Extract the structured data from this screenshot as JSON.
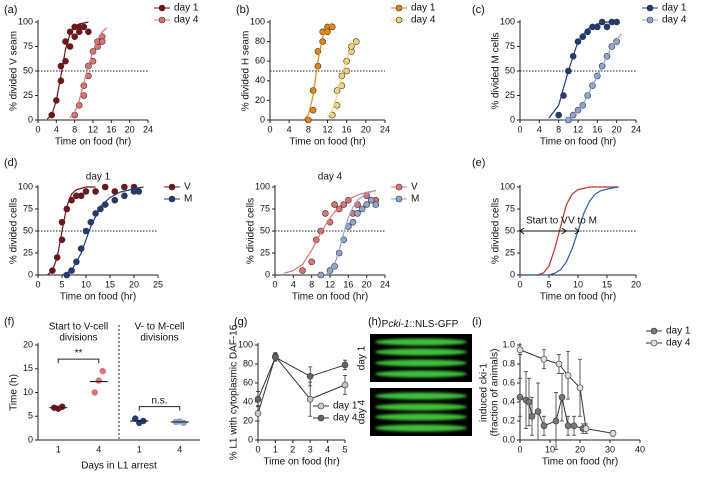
{
  "chart_data": [
    {
      "panel": "(a)",
      "type": "scatter",
      "xlabel": "Time on food (hr)",
      "ylabel": "% divided V seam",
      "xlim": [
        0,
        24
      ],
      "xticks": [
        0,
        4,
        8,
        12,
        16,
        20,
        24
      ],
      "ylim": [
        0,
        100
      ],
      "yticks": [
        0,
        25,
        50,
        75,
        100
      ],
      "hline": 50,
      "legend": "outside upper right",
      "series": [
        {
          "name": "day 1",
          "color": "#7a0f14",
          "mode": "markers",
          "x": [
            3,
            4,
            5,
            5,
            6,
            6,
            7,
            7,
            8,
            8,
            9,
            9,
            10,
            11
          ],
          "values": [
            5,
            20,
            40,
            55,
            60,
            80,
            75,
            90,
            85,
            95,
            90,
            95,
            95,
            90
          ]
        },
        {
          "color": "#7a0f14",
          "mode": "lines",
          "x": [
            2,
            3,
            4,
            5,
            6,
            7,
            8,
            9,
            10,
            11
          ],
          "values": [
            1,
            5,
            20,
            45,
            72,
            88,
            95,
            98,
            99,
            100
          ]
        },
        {
          "name": "day 4",
          "color": "#e07274",
          "mode": "markers",
          "x": [
            8,
            9,
            10,
            10,
            11,
            11,
            12,
            12,
            13,
            13,
            14,
            14
          ],
          "values": [
            5,
            15,
            25,
            35,
            45,
            55,
            60,
            70,
            75,
            80,
            85,
            80
          ]
        },
        {
          "color": "#e07274",
          "mode": "lines",
          "x": [
            7,
            8,
            9,
            10,
            11,
            12,
            13,
            14,
            15
          ],
          "values": [
            2,
            8,
            20,
            38,
            55,
            70,
            82,
            90,
            94
          ]
        }
      ]
    },
    {
      "panel": "(b)",
      "type": "scatter",
      "xlabel": "Time on food (hr)",
      "ylabel": "% divided H seam",
      "xlim": [
        0,
        24
      ],
      "xticks": [
        0,
        4,
        8,
        12,
        16,
        20,
        24
      ],
      "ylim": [
        0,
        100
      ],
      "yticks": [
        0,
        20,
        40,
        60,
        80,
        100
      ],
      "hline": 50,
      "legend": "outside upper right",
      "series": [
        {
          "name": "day 1",
          "color": "#e8870f",
          "mode": "markers",
          "x": [
            8,
            9,
            9,
            10,
            10,
            11,
            11,
            12,
            12,
            13
          ],
          "values": [
            0,
            10,
            30,
            55,
            70,
            80,
            90,
            95,
            90,
            95
          ]
        },
        {
          "color": "#e8870f",
          "mode": "lines",
          "x": [
            7,
            8,
            9,
            10,
            11,
            12,
            13
          ],
          "values": [
            0,
            5,
            25,
            60,
            85,
            95,
            99
          ]
        },
        {
          "name": "day 4",
          "color": "#f2d372",
          "mode": "markers",
          "x": [
            13,
            14,
            14,
            15,
            15,
            16,
            16,
            17,
            17,
            18
          ],
          "values": [
            5,
            15,
            30,
            35,
            45,
            50,
            60,
            70,
            75,
            80
          ]
        },
        {
          "color": "#f2d372",
          "mode": "lines",
          "x": [
            12,
            13,
            14,
            15,
            16,
            17,
            18
          ],
          "values": [
            2,
            10,
            25,
            45,
            62,
            75,
            82
          ]
        }
      ]
    },
    {
      "panel": "(c)",
      "type": "scatter",
      "xlabel": "Time on food (hr)",
      "ylabel": "% divided M cells",
      "xlim": [
        0,
        24
      ],
      "xticks": [
        0,
        4,
        8,
        12,
        16,
        20,
        24
      ],
      "ylim": [
        0,
        100
      ],
      "yticks": [
        0,
        25,
        50,
        75,
        100
      ],
      "hline": 50,
      "legend": "outside upper right",
      "series": [
        {
          "name": "day 1",
          "color": "#1f3c78",
          "mode": "markers",
          "x": [
            8,
            9,
            10,
            11,
            12,
            13,
            14,
            15,
            16,
            17,
            18,
            19,
            20
          ],
          "values": [
            5,
            25,
            50,
            65,
            80,
            85,
            90,
            95,
            95,
            100,
            95,
            100,
            100
          ]
        },
        {
          "color": "#1f3c78",
          "mode": "lines",
          "x": [
            6,
            8,
            10,
            12,
            14,
            16,
            18,
            20
          ],
          "values": [
            2,
            15,
            50,
            80,
            93,
            98,
            100,
            100
          ]
        },
        {
          "name": "day 4",
          "color": "#8ea7d2",
          "mode": "markers",
          "x": [
            10,
            11,
            12,
            13,
            14,
            15,
            16,
            17,
            18,
            19,
            20
          ],
          "values": [
            0,
            5,
            10,
            15,
            25,
            35,
            45,
            55,
            65,
            75,
            80
          ]
        },
        {
          "color": "#8ea7d2",
          "mode": "lines",
          "x": [
            9,
            11,
            13,
            15,
            17,
            19,
            21
          ],
          "values": [
            0,
            5,
            15,
            35,
            55,
            75,
            88
          ]
        }
      ]
    },
    {
      "panel": "(d)",
      "type": "scatter",
      "title": "day 1",
      "xlabel": "Time on food (hr)",
      "ylabel": "% divided cells",
      "xlim": [
        0,
        25
      ],
      "xticks": [
        0,
        5,
        10,
        15,
        20,
        25
      ],
      "ylim": [
        0,
        100
      ],
      "yticks": [
        0,
        25,
        50,
        75,
        100
      ],
      "hline": 50,
      "legend": "outside upper right",
      "series": [
        {
          "name": "V",
          "color": "#7a0f14",
          "mode": "markers",
          "x": [
            3,
            4,
            5,
            5,
            6,
            7,
            8,
            9,
            10,
            12,
            14,
            16,
            18,
            20
          ],
          "values": [
            5,
            20,
            40,
            60,
            75,
            85,
            90,
            90,
            95,
            95,
            100,
            95,
            100,
            100
          ]
        },
        {
          "color": "#7a0f14",
          "mode": "lines",
          "x": [
            2,
            3,
            4,
            5,
            6,
            7,
            8,
            10,
            12
          ],
          "values": [
            0,
            5,
            20,
            50,
            78,
            92,
            97,
            100,
            100
          ]
        },
        {
          "name": "M",
          "color": "#1f3c78",
          "mode": "markers",
          "x": [
            6,
            7,
            8,
            9,
            10,
            11,
            12,
            13,
            14,
            16,
            18,
            20,
            21
          ],
          "values": [
            0,
            5,
            15,
            30,
            50,
            60,
            70,
            75,
            80,
            85,
            90,
            95,
            95
          ]
        },
        {
          "color": "#1f3c78",
          "mode": "lines",
          "x": [
            5,
            7,
            9,
            11,
            13,
            15,
            17,
            20,
            22
          ],
          "values": [
            0,
            5,
            25,
            55,
            78,
            88,
            94,
            98,
            100
          ]
        }
      ]
    },
    {
      "type": "scatter",
      "title": "day 4",
      "xlabel": "Time on food (hr)",
      "ylabel": "% divided cells",
      "xlim": [
        0,
        24
      ],
      "xticks": [
        0,
        4,
        8,
        12,
        16,
        20,
        24
      ],
      "ylim": [
        0,
        100
      ],
      "yticks": [
        0,
        25,
        50,
        75,
        100
      ],
      "hline": 50,
      "legend": "outside upper right",
      "series": [
        {
          "name": "V",
          "color": "#e07274",
          "mode": "markers",
          "x": [
            6,
            8,
            9,
            10,
            11,
            12,
            13,
            14,
            15,
            16,
            17,
            18,
            20,
            22
          ],
          "values": [
            5,
            15,
            40,
            50,
            70,
            60,
            80,
            75,
            80,
            85,
            70,
            80,
            90,
            85
          ]
        },
        {
          "color": "#e07274",
          "mode": "lines",
          "x": [
            2,
            4,
            6,
            8,
            10,
            12,
            14,
            16,
            18,
            20,
            22
          ],
          "values": [
            2,
            5,
            12,
            28,
            48,
            65,
            78,
            86,
            91,
            94,
            96
          ]
        },
        {
          "name": "M",
          "color": "#8ea7d2",
          "mode": "markers",
          "x": [
            10,
            12,
            13,
            14,
            15,
            16,
            17,
            18,
            19,
            20,
            21,
            22
          ],
          "values": [
            0,
            5,
            10,
            25,
            40,
            55,
            60,
            70,
            75,
            80,
            85,
            80
          ]
        },
        {
          "color": "#8ea7d2",
          "mode": "lines",
          "x": [
            11,
            12,
            13,
            14,
            15,
            16,
            17,
            18,
            20,
            22
          ],
          "values": [
            0,
            4,
            12,
            28,
            48,
            65,
            77,
            85,
            93,
            96
          ]
        }
      ]
    },
    {
      "panel": "(e)",
      "type": "line",
      "xlabel": "Time on food (hr)",
      "ylabel": "% divided cells",
      "xlim": [
        0,
        20
      ],
      "xticks": [
        0,
        5,
        10,
        15,
        20
      ],
      "ylim": [
        0,
        100
      ],
      "yticks": [
        0,
        25,
        50,
        75,
        100
      ],
      "hline": 50,
      "annotations": [
        "Start to V",
        "V to M"
      ],
      "series": [
        {
          "color": "#c0302a",
          "mode": "lines",
          "x": [
            0,
            3,
            4,
            5,
            6,
            7,
            8,
            9,
            10,
            12,
            14,
            17
          ],
          "values": [
            0,
            0,
            2,
            10,
            30,
            55,
            80,
            92,
            97,
            100,
            100,
            100
          ]
        },
        {
          "color": "#2a5ca8",
          "mode": "lines",
          "x": [
            0,
            5,
            6,
            7,
            8,
            9,
            10,
            11,
            12,
            13,
            14,
            16,
            17
          ],
          "values": [
            0,
            0,
            2,
            6,
            15,
            30,
            50,
            70,
            84,
            92,
            96,
            99,
            100
          ]
        }
      ]
    },
    {
      "panel": "(f)",
      "type": "dot",
      "xlabel": "Days in L1 arrest",
      "ylabel": "Time (h)",
      "ylim": [
        0,
        20
      ],
      "yticks": [
        0,
        5,
        10,
        15,
        20
      ],
      "groups": [
        {
          "label_lines": [
            "Start to V-cell",
            "divisions"
          ],
          "categories": [
            "1",
            "4"
          ],
          "points": [
            [
              6.8,
              6.6,
              7.0
            ],
            [
              10,
              12.5,
              14.5
            ]
          ],
          "means": [
            6.8,
            12.3
          ],
          "colors": [
            "#7a0f14",
            "#e07274"
          ],
          "significance": "**"
        },
        {
          "label_lines": [
            "V- to M-cell",
            "divisions"
          ],
          "categories": [
            "1",
            "4"
          ],
          "points": [
            [
              4.5,
              3.6,
              4.0
            ],
            [
              3.8,
              3.9,
              3.6
            ]
          ],
          "means": [
            4.0,
            3.8
          ],
          "colors": [
            "#1f3c78",
            "#8ea7d2"
          ],
          "significance": "n.s."
        }
      ]
    },
    {
      "panel": "(g)",
      "type": "line",
      "xlabel": "Time on food (hr)",
      "ylabel": "% L1 with cytoplasmic DAF-16",
      "xlim": [
        0,
        5
      ],
      "xticks": [
        0,
        1,
        2,
        3,
        4,
        5
      ],
      "ylim": [
        0,
        100
      ],
      "yticks": [
        0,
        20,
        40,
        60,
        80,
        100
      ],
      "legend": "lower right",
      "series": [
        {
          "name": "day 1",
          "color": "#c8c8c8",
          "mode": "lines+markers",
          "x": [
            0,
            1,
            3,
            5
          ],
          "values": [
            28,
            88,
            43,
            58
          ],
          "errors": [
            8,
            4,
            18,
            10
          ]
        },
        {
          "name": "day 4",
          "color": "#666666",
          "mode": "lines+markers",
          "x": [
            0,
            1,
            3,
            5
          ],
          "values": [
            43,
            87,
            67,
            79
          ],
          "errors": [
            8,
            4,
            10,
            5
          ]
        }
      ]
    },
    {
      "panel": "(i)",
      "type": "line",
      "xlabel": "Time on food (hr)",
      "ylabel": "induced cki-1",
      "ylabel2": "(fraction of animals)",
      "xlim": [
        0,
        40
      ],
      "xticks": [
        0,
        10,
        20,
        30,
        40
      ],
      "ylim": [
        0,
        1
      ],
      "yticks": [
        {
          "value": 0,
          "label": "0.0"
        },
        0.2,
        0.4,
        0.6,
        0.8,
        {
          "value": 1,
          "label": "1.0"
        }
      ],
      "legend": "outside upper right",
      "series": [
        {
          "name": "day 1",
          "color": "#777777",
          "mode": "lines+markers",
          "x": [
            0,
            2,
            3,
            4,
            6,
            8,
            12,
            14,
            16,
            18,
            21
          ],
          "values": [
            0.45,
            0.42,
            0.4,
            0.25,
            0.3,
            0.15,
            0.2,
            0.45,
            0.15,
            0.15,
            0.12
          ],
          "errors": [
            0.2,
            0.3,
            0.25,
            0.2,
            0.3,
            0.1,
            0.3,
            0.25,
            0.1,
            0.1,
            0.05
          ]
        },
        {
          "name": "day 4",
          "color": "#dddddd",
          "mode": "lines+markers",
          "x": [
            0,
            8,
            13,
            16,
            20,
            22,
            31
          ],
          "values": [
            0.95,
            0.85,
            0.8,
            0.68,
            0.55,
            0.12,
            0.07
          ],
          "errors": [
            0.05,
            0.1,
            0.1,
            0.25,
            0.3,
            0.05,
            0.03
          ]
        }
      ]
    }
  ],
  "image_panel": {
    "label": "(h)",
    "title_prefix": "P",
    "title_italic": "cki-1",
    "title_suffix": "::NLS-GFP",
    "rows": [
      "day 1",
      "day 4"
    ]
  }
}
